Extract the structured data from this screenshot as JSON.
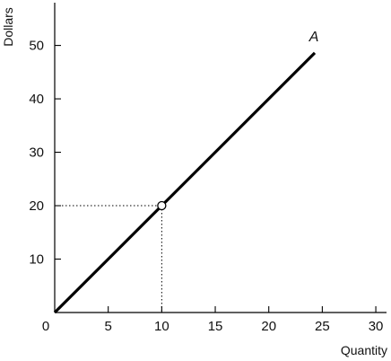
{
  "chart_data": {
    "type": "line",
    "xlabel": "Quantity",
    "ylabel": "Dollars",
    "xlim": [
      0,
      31
    ],
    "ylim": [
      0,
      58
    ],
    "x_ticks": [
      0,
      5,
      10,
      15,
      20,
      25,
      30
    ],
    "y_ticks": [
      10,
      20,
      30,
      40,
      50
    ],
    "grid": false,
    "series": [
      {
        "name": "A",
        "points": [
          [
            0,
            0
          ],
          [
            24.3,
            48.6
          ]
        ],
        "color": "#000000"
      }
    ],
    "highlight_point": {
      "x": 10,
      "y": 20,
      "marker": "open-circle"
    }
  }
}
